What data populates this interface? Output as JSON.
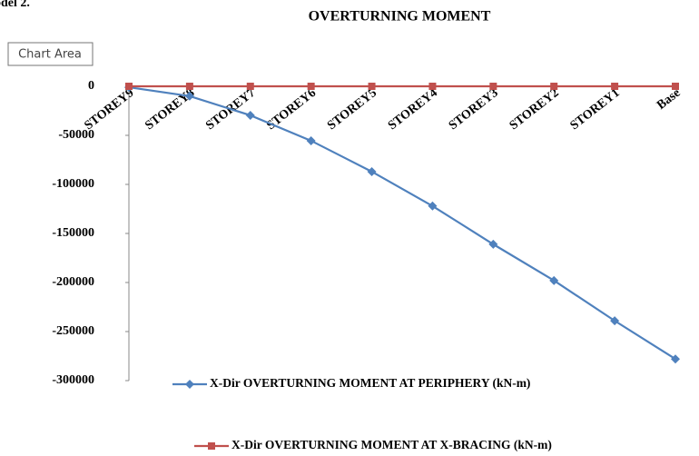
{
  "page_text": "odel 2.",
  "tooltip": "Chart Area",
  "chart_data": {
    "type": "line",
    "title": "OVERTURNING MOMENT",
    "categories": [
      "STOREY9",
      "STOREY8",
      "STOREY7",
      "STOREY6",
      "STOREY5",
      "STOREY4",
      "STOREY3",
      "STOREY2",
      "STOREY1",
      "Base"
    ],
    "series": [
      {
        "name": "X-Dir OVERTURNING MOMENT AT  PERIPHERY (kN-m)",
        "color": "#4f81bd",
        "marker": "diamond",
        "values": [
          -1000,
          -10000,
          -29600,
          -55500,
          -87000,
          -122000,
          -161000,
          -198000,
          -239000,
          -278000
        ]
      },
      {
        "name": "X-Dir OVERTURNING MOMENT AT X-BRACING (kN-m)",
        "color": "#c0504d",
        "marker": "square",
        "values": [
          0,
          0,
          0,
          0,
          0,
          0,
          0,
          0,
          0,
          0
        ]
      }
    ],
    "ylim": [
      -300000,
      0
    ],
    "yticks": [
      0,
      -50000,
      -100000,
      -150000,
      -200000,
      -250000,
      -300000
    ],
    "grid": false,
    "legend": "bottom"
  }
}
